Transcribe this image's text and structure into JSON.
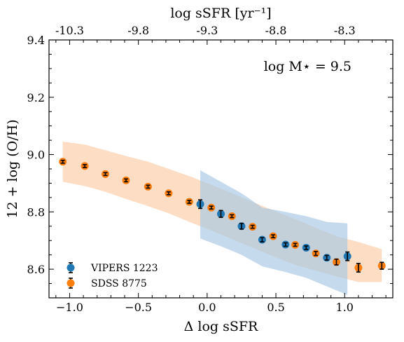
{
  "chart_data": {
    "type": "scatter",
    "xlabel": "Δ log sSFR",
    "ylabel": "12 + log (O/H)",
    "top_xlabel": "log sSFR [yr⁻¹]",
    "annotation": "log M⋆ = 9.5",
    "xlim": [
      -1.15,
      1.35
    ],
    "ylim": [
      8.5,
      9.4
    ],
    "x_ticks": [
      -1.0,
      -0.5,
      0.0,
      0.5,
      1.0
    ],
    "x_tick_labels": [
      "−1.0",
      "−0.5",
      "0.0",
      "0.5",
      "1.0"
    ],
    "y_ticks": [
      8.6,
      8.8,
      9.0,
      9.2,
      9.4
    ],
    "y_tick_labels": [
      "8.6",
      "8.8",
      "9.0",
      "9.2",
      "9.4"
    ],
    "top_ticks": [
      -1.0,
      -0.5,
      0.0,
      0.5,
      1.0
    ],
    "top_tick_labels": [
      "-10.3",
      "-9.8",
      "-9.3",
      "-8.8",
      "-8.3"
    ],
    "legend_position": "lower-left",
    "series": [
      {
        "name": "VIPERS 1223",
        "color": "#1f77b4",
        "band_color": "#a6c8e3",
        "x": [
          -0.05,
          0.1,
          0.25,
          0.4,
          0.57,
          0.72,
          0.87,
          1.02
        ],
        "y": [
          8.827,
          8.793,
          8.75,
          8.703,
          8.686,
          8.675,
          8.64,
          8.645
        ],
        "err": [
          0.015,
          0.012,
          0.01,
          0.007,
          0.006,
          0.006,
          0.008,
          0.015
        ],
        "band": {
          "x": [
            -0.05,
            0.1,
            0.25,
            0.4,
            0.57,
            0.72,
            0.87,
            1.02
          ],
          "upper": [
            8.945,
            8.905,
            8.865,
            8.815,
            8.8,
            8.785,
            8.765,
            8.76
          ],
          "lower": [
            8.707,
            8.68,
            8.65,
            8.61,
            8.59,
            8.57,
            8.54,
            8.51
          ]
        }
      },
      {
        "name": "SDSS 8775",
        "color": "#ff7f0e",
        "band_color": "#fccca6",
        "x": [
          -1.05,
          -0.89,
          -0.74,
          -0.59,
          -0.43,
          -0.28,
          -0.13,
          0.03,
          0.18,
          0.33,
          0.48,
          0.64,
          0.79,
          0.94,
          1.1,
          1.27
        ],
        "y": [
          8.975,
          8.96,
          8.932,
          8.91,
          8.888,
          8.865,
          8.835,
          8.815,
          8.785,
          8.748,
          8.715,
          8.685,
          8.655,
          8.625,
          8.605,
          8.612
        ],
        "err": [
          0.005,
          0.005,
          0.005,
          0.005,
          0.005,
          0.005,
          0.005,
          0.005,
          0.005,
          0.005,
          0.005,
          0.005,
          0.007,
          0.01,
          0.015,
          0.012
        ],
        "band": {
          "x": [
            -1.05,
            -0.89,
            -0.74,
            -0.59,
            -0.43,
            -0.28,
            -0.13,
            0.03,
            0.18,
            0.33,
            0.48,
            0.64,
            0.79,
            0.94,
            1.1,
            1.27
          ],
          "upper": [
            9.045,
            9.035,
            9.015,
            8.995,
            8.975,
            8.95,
            8.925,
            8.895,
            8.865,
            8.835,
            8.805,
            8.775,
            8.745,
            8.715,
            8.695,
            8.67
          ],
          "lower": [
            8.905,
            8.89,
            8.87,
            8.845,
            8.82,
            8.795,
            8.765,
            8.735,
            8.705,
            8.675,
            8.645,
            8.615,
            8.595,
            8.575,
            8.555,
            8.555
          ]
        }
      }
    ]
  }
}
